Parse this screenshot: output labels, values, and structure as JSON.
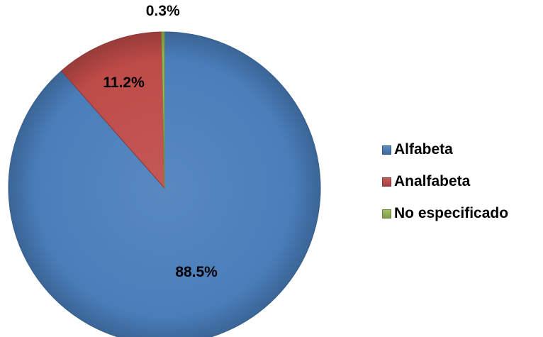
{
  "chart_data": {
    "type": "pie",
    "categories": [
      "Alfabeta",
      "Analfabeta",
      "No especificado"
    ],
    "values": [
      88.5,
      11.2,
      0.3
    ],
    "data_labels": [
      "88.5%",
      "11.2%",
      "0.3%"
    ],
    "colors": [
      "#4a7ebb",
      "#be4b48",
      "#98b954"
    ],
    "legend_position": "right",
    "start": "top",
    "direction": "clockwise"
  }
}
